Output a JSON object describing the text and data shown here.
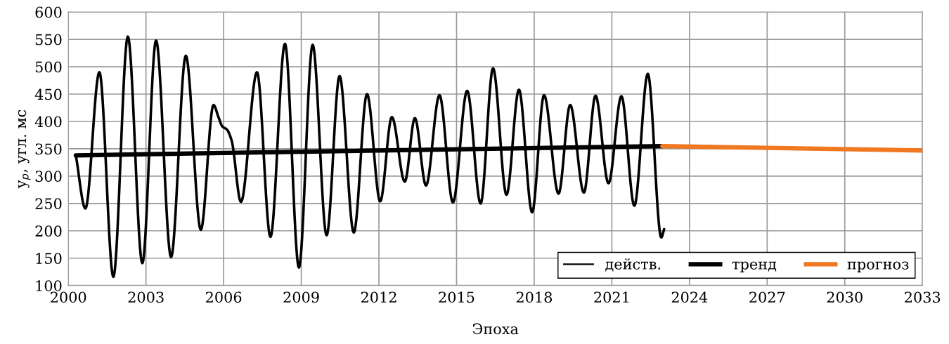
{
  "chart_data": {
    "type": "line",
    "xlabel": "Эпоха",
    "ylabel": "y$_{p}$, угл. мс",
    "xlim": [
      2000,
      2033
    ],
    "xticks": [
      2000,
      2003,
      2006,
      2009,
      2012,
      2015,
      2018,
      2021,
      2024,
      2027,
      2030,
      2033
    ],
    "ylim": [
      100,
      600
    ],
    "yticks": [
      100,
      150,
      200,
      250,
      300,
      350,
      400,
      450,
      500,
      550,
      600
    ],
    "grid": true,
    "legend": "bottom right",
    "marker": "none",
    "line_style": "solid",
    "series": [
      {
        "name": "действ.",
        "color": "#000000",
        "x": [
          2000.29,
          2000.66,
          2001.2,
          2001.74,
          2002.3,
          2002.86,
          2003.39,
          2003.97,
          2004.54,
          2005.12,
          2005.61,
          2005.8,
          2005.95,
          2006.13,
          2006.31,
          2006.67,
          2007.29,
          2007.81,
          2008.37,
          2008.91,
          2009.44,
          2009.98,
          2010.48,
          2011.03,
          2011.54,
          2012.05,
          2012.5,
          2013.0,
          2013.39,
          2013.82,
          2014.34,
          2014.86,
          2015.41,
          2015.93,
          2016.41,
          2016.93,
          2017.41,
          2017.92,
          2018.38,
          2018.94,
          2019.39,
          2019.92,
          2020.37,
          2020.87,
          2021.37,
          2021.87,
          2022.39,
          2022.91,
          2023.02
        ],
        "values": [
          338,
          241,
          490,
          116,
          555,
          141,
          548,
          152,
          520,
          202,
          430,
          408,
          391,
          385,
          365,
          253,
          490,
          189,
          542,
          133,
          540,
          192,
          483,
          197,
          450,
          254,
          408,
          290,
          406,
          283,
          448,
          252,
          456,
          250,
          497,
          266,
          458,
          234,
          448,
          268,
          430,
          270,
          447,
          287,
          446,
          246,
          487,
          188,
          203
        ]
      },
      {
        "name": "тренд",
        "color": "#000000",
        "x": [
          2000.29,
          2022.95
        ],
        "values": [
          338,
          355
        ]
      },
      {
        "name": "прогноз",
        "color": "#f07820",
        "x": [
          2022.95,
          2033
        ],
        "values": [
          355,
          347
        ]
      }
    ]
  }
}
